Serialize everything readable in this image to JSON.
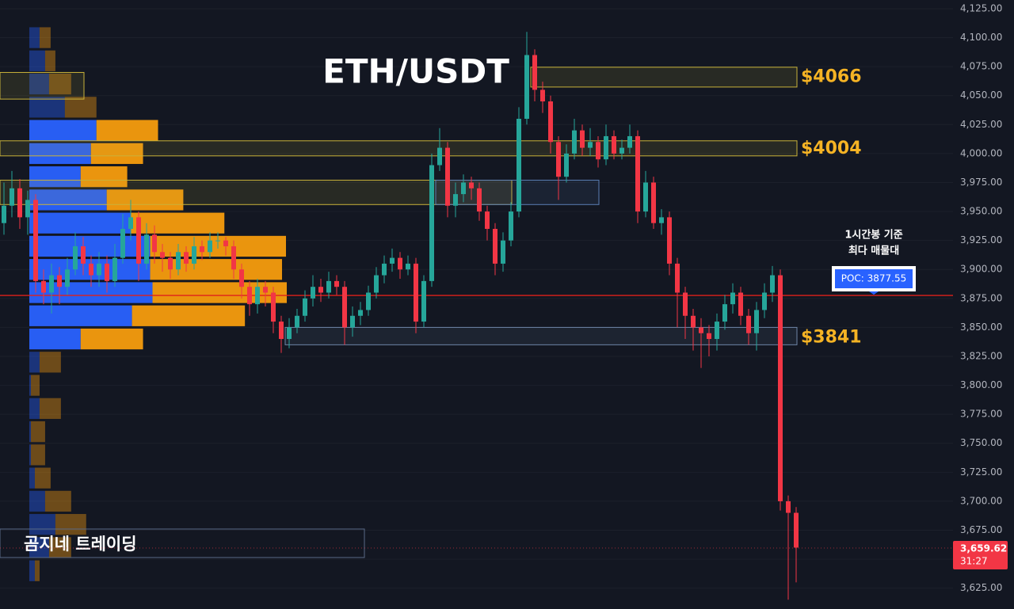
{
  "chart_data": {
    "type": "candlestick",
    "title": "ETH/USDT",
    "ylim": [
      3607,
      4132.5
    ],
    "yticks": [
      {
        "value": 3625,
        "label": "3,625.00"
      },
      {
        "value": 3650,
        "label": "3,650.00"
      },
      {
        "value": 3675,
        "label": "3,675.00"
      },
      {
        "value": 3700,
        "label": "3,700.00"
      },
      {
        "value": 3725,
        "label": "3,725.00"
      },
      {
        "value": 3750,
        "label": "3,750.00"
      },
      {
        "value": 3775,
        "label": "3,775.00"
      },
      {
        "value": 3800,
        "label": "3,800.00"
      },
      {
        "value": 3825,
        "label": "3,825.00"
      },
      {
        "value": 3850,
        "label": "3,850.00"
      },
      {
        "value": 3875,
        "label": "3,875.00"
      },
      {
        "value": 3900,
        "label": "3,900.00"
      },
      {
        "value": 3925,
        "label": "3,925.00"
      },
      {
        "value": 3950,
        "label": "3,950.00"
      },
      {
        "value": 3975,
        "label": "3,975.00"
      },
      {
        "value": 4000,
        "label": "4,000.00"
      },
      {
        "value": 4025,
        "label": "4,025.00"
      },
      {
        "value": 4050,
        "label": "4,050.00"
      },
      {
        "value": 4075,
        "label": "4,075.00"
      },
      {
        "value": 4100,
        "label": "4,100.00"
      },
      {
        "value": 4125,
        "label": "4,125.00"
      }
    ],
    "grid": true,
    "up_color": "#26a69a",
    "down_color": "#f23645",
    "open": [
      3940,
      3955,
      3970,
      3945,
      3960,
      3890,
      3880,
      3895,
      3885,
      3900,
      3920,
      3905,
      3895,
      3905,
      3890,
      3910,
      3935,
      3945,
      3905,
      3930,
      3915,
      3910,
      3900,
      3915,
      3905,
      3920,
      3915,
      3925,
      3925,
      3920,
      3900,
      3885,
      3870,
      3885,
      3880,
      3855,
      3840,
      3850,
      3860,
      3875,
      3885,
      3880,
      3890,
      3885,
      3850,
      3860,
      3865,
      3880,
      3895,
      3905,
      3910,
      3900,
      3905,
      3855,
      3890,
      3990,
      4005,
      3955,
      3965,
      3975,
      3970,
      3950,
      3935,
      3905,
      3925,
      3950,
      4030,
      4085,
      4055,
      4045,
      4010,
      3980,
      4000,
      4020,
      4005,
      4010,
      3995,
      4015,
      4000,
      4005,
      4015,
      3950,
      3975,
      3940,
      3945,
      3905,
      3880,
      3860,
      3850,
      3845,
      3840,
      3855,
      3870,
      3880,
      3860,
      3845,
      3865,
      3880,
      3895,
      3700,
      3690
    ],
    "high": [
      3975,
      3985,
      3978,
      3968,
      3965,
      3900,
      3905,
      3902,
      3910,
      3932,
      3928,
      3912,
      3915,
      3912,
      3922,
      3948,
      3960,
      3950,
      3940,
      3938,
      3922,
      3915,
      3922,
      3920,
      3928,
      3925,
      3932,
      3932,
      3928,
      3925,
      3905,
      3890,
      3892,
      3890,
      3885,
      3860,
      3858,
      3866,
      3882,
      3895,
      3892,
      3898,
      3895,
      3890,
      3868,
      3872,
      3886,
      3902,
      3912,
      3918,
      3915,
      3912,
      3910,
      3895,
      4000,
      4022,
      4010,
      3975,
      3982,
      3980,
      3975,
      3955,
      3940,
      3932,
      3958,
      4040,
      4105,
      4090,
      4062,
      4050,
      4015,
      4008,
      4030,
      4025,
      4022,
      4015,
      4025,
      4020,
      4012,
      4025,
      4020,
      3985,
      3980,
      3952,
      3950,
      3910,
      3885,
      3866,
      3858,
      3852,
      3862,
      3878,
      3888,
      3885,
      3866,
      3872,
      3888,
      3903,
      3900,
      3705,
      3695
    ],
    "low": [
      3930,
      3945,
      3935,
      3930,
      3880,
      3870,
      3862,
      3870,
      3878,
      3895,
      3895,
      3885,
      3885,
      3880,
      3885,
      3905,
      3925,
      3890,
      3900,
      3905,
      3898,
      3892,
      3895,
      3898,
      3900,
      3908,
      3910,
      3918,
      3912,
      3892,
      3875,
      3860,
      3862,
      3868,
      3845,
      3828,
      3832,
      3845,
      3855,
      3868,
      3872,
      3875,
      3878,
      3835,
      3842,
      3852,
      3860,
      3875,
      3888,
      3898,
      3892,
      3895,
      3845,
      3850,
      3885,
      3985,
      3945,
      3945,
      3958,
      3960,
      3942,
      3925,
      3895,
      3898,
      3920,
      3945,
      4025,
      4045,
      4035,
      4000,
      3960,
      3975,
      3995,
      3998,
      3998,
      3988,
      3990,
      3995,
      3995,
      4000,
      3940,
      3945,
      3935,
      3930,
      3895,
      3850,
      3840,
      3830,
      3815,
      3825,
      3830,
      3848,
      3862,
      3852,
      3835,
      3830,
      3858,
      3872,
      3692,
      3615,
      3630
    ],
    "close": [
      3955,
      3970,
      3945,
      3960,
      3890,
      3880,
      3895,
      3885,
      3900,
      3920,
      3905,
      3895,
      3905,
      3890,
      3910,
      3935,
      3945,
      3905,
      3930,
      3915,
      3910,
      3900,
      3915,
      3905,
      3920,
      3915,
      3925,
      3925,
      3920,
      3900,
      3885,
      3870,
      3885,
      3880,
      3855,
      3840,
      3850,
      3860,
      3875,
      3885,
      3880,
      3890,
      3885,
      3850,
      3860,
      3865,
      3880,
      3895,
      3905,
      3910,
      3900,
      3905,
      3855,
      3890,
      3990,
      4005,
      3955,
      3965,
      3975,
      3970,
      3950,
      3935,
      3905,
      3925,
      3950,
      4030,
      4085,
      4055,
      4045,
      4010,
      3980,
      4000,
      4020,
      4005,
      4010,
      3995,
      4015,
      4000,
      4005,
      4015,
      3950,
      3975,
      3940,
      3945,
      3905,
      3880,
      3860,
      3850,
      3845,
      3840,
      3855,
      3870,
      3880,
      3860,
      3845,
      3865,
      3880,
      3895,
      3700,
      3690,
      3660
    ],
    "volume_profile": {
      "levels": [
        4100,
        4080,
        4060,
        4040,
        4020,
        4000,
        3980,
        3960,
        3940,
        3920,
        3900,
        3880,
        3860,
        3840,
        3820,
        3800,
        3780,
        3760,
        3740,
        3720,
        3700,
        3680,
        3660,
        3640
      ],
      "buy": [
        13,
        20,
        25,
        45,
        85,
        78,
        65,
        98,
        128,
        153,
        153,
        156,
        130,
        65,
        13,
        2,
        13,
        2,
        2,
        7,
        20,
        33,
        25,
        7
      ],
      "sell": [
        14,
        13,
        28,
        40,
        78,
        66,
        59,
        97,
        119,
        172,
        167,
        170,
        143,
        79,
        27,
        11,
        27,
        18,
        18,
        20,
        33,
        39,
        28,
        6
      ],
      "row_size": 20,
      "value_area": [
        3840,
        4020
      ],
      "buy_color": "#2962ff",
      "sell_color": "#f59c0e"
    },
    "zones": [
      {
        "low": 4047,
        "high": 4070,
        "from": 0,
        "to": 10,
        "color": "#c9b23a"
      },
      {
        "low": 3956,
        "high": 3977,
        "from": 0,
        "to": 64,
        "color": "#c9b23a"
      },
      {
        "low": 3956,
        "high": 3977,
        "from": 55,
        "to": 75,
        "color": "#5b7fb5"
      },
      {
        "low": 4057.4,
        "high": 4074.5,
        "from": 67,
        "to": 100,
        "color": "#c9b23a",
        "level": 4066,
        "label": "$4066"
      },
      {
        "low": 3998,
        "high": 4011,
        "from": 0,
        "to": 100,
        "color": "#c9b23a",
        "level": 4004,
        "label": "$4004"
      },
      {
        "low": 3835,
        "high": 3850,
        "from": 36,
        "to": 100,
        "color": "#6f86a8",
        "level": 3841,
        "label": "$3841"
      }
    ],
    "label_color": "#f5b324",
    "poc": {
      "value": 3877.55,
      "label": "POC: 3877.55",
      "color": "#e0201b"
    },
    "annotation": [
      "1시간봉 기준",
      "최다 매물대"
    ],
    "last_price": {
      "value": 3659.62,
      "label": "3,659.62",
      "countdown": "31:27"
    },
    "watermark": "곰지네 트레이딩"
  }
}
